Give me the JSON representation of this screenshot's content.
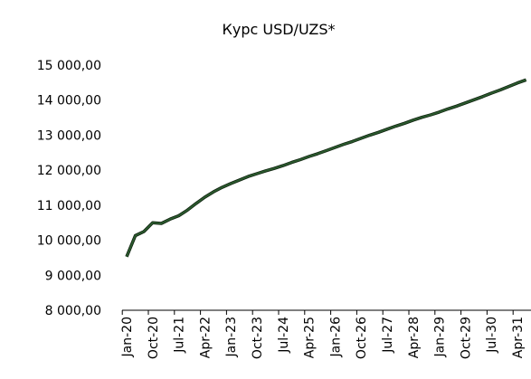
{
  "chart_data": {
    "type": "line",
    "title": "Курс USD/UZS*",
    "categories": [
      "Jan-20",
      null,
      null,
      "Oct-20",
      null,
      null,
      "Jul-21",
      null,
      null,
      "Apr-22",
      null,
      null,
      "Jan-23",
      null,
      null,
      "Oct-23",
      null,
      null,
      "Jul-24",
      null,
      null,
      "Apr-25",
      null,
      null,
      "Jan-26",
      null,
      null,
      "Oct-26",
      null,
      null,
      "Jul-27",
      null,
      null,
      "Apr-28",
      null,
      null,
      "Jan-29",
      null,
      null,
      "Oct-29",
      null,
      null,
      "Jul-30",
      null,
      null,
      "Apr-31",
      null
    ],
    "values": [
      9530,
      10130,
      10250,
      10500,
      10480,
      10600,
      10700,
      10860,
      11050,
      11230,
      11380,
      11510,
      11620,
      11720,
      11820,
      11900,
      11980,
      12050,
      12130,
      12220,
      12300,
      12390,
      12470,
      12560,
      12650,
      12740,
      12820,
      12910,
      13000,
      13080,
      13170,
      13260,
      13340,
      13430,
      13510,
      13580,
      13660,
      13750,
      13830,
      13920,
      14010,
      14100,
      14200,
      14290,
      14390,
      14490,
      14580
    ],
    "color": "#2b5a2e",
    "ylim": [
      8000,
      15000
    ],
    "yticks": [
      {
        "value": 8000,
        "label": "8 000,00"
      },
      {
        "value": 9000,
        "label": "9 000,00"
      },
      {
        "value": 10000,
        "label": "10 000,00"
      },
      {
        "value": 11000,
        "label": "11 000,00"
      },
      {
        "value": 12000,
        "label": "12 000,00"
      },
      {
        "value": 13000,
        "label": "13 000,00"
      },
      {
        "value": 14000,
        "label": "14 000,00"
      },
      {
        "value": 15000,
        "label": "15 000,00"
      }
    ],
    "grid": false
  }
}
